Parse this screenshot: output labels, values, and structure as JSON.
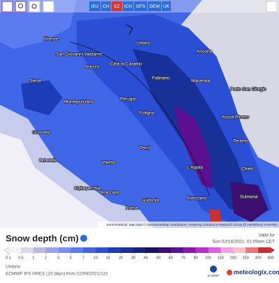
{
  "toolbar": {
    "models": [
      "IEU",
      "CH",
      "EZ",
      "ICN",
      "GFS",
      "GEM",
      "UK"
    ],
    "active": "EZ"
  },
  "map": {
    "labels": [
      "Firenze",
      "Urbino",
      "Ancona",
      "San Giovanni Valdarno",
      "Arezzo",
      "Città di Castello",
      "Siena",
      "Fabriano",
      "Macerata",
      "Porto San Giorgio",
      "Montepulciano",
      "Perugia",
      "Foligno",
      "Grosseto",
      "Ascoli Piceno",
      "Teramo",
      "Terni",
      "Orbetello",
      "Viterbo",
      "L'Aquila",
      "Chieti",
      "Civitavecchia",
      "Bracciano",
      "Avezzano",
      "Sulmona",
      "Roma",
      "Guidonia"
    ],
    "attribution": "Kartenmaterial: Map data © OpenStreetMap contributors, rendering GIScience Research Group @ Heidelberg University"
  },
  "legend": {
    "title": "Snow depth (cm)",
    "valid_label": "Valid for",
    "valid_time": "Sun 02/14/2021, 01:00am CET",
    "ticks": [
      0.1,
      0.5,
      1,
      2,
      3,
      5,
      7,
      10,
      15,
      20,
      30,
      40,
      50,
      60,
      70,
      80,
      100,
      150,
      200,
      250,
      300,
      400
    ],
    "colors": [
      "#f4f4f8",
      "#d8d8ec",
      "#b8b8e0",
      "#9aa4e8",
      "#7890f0",
      "#5a7cf0",
      "#3f66e6",
      "#2a4fd4",
      "#1d3cb8",
      "#17309a",
      "#14247c",
      "#1a1460",
      "#3a0f70",
      "#5a1090",
      "#8a18b0",
      "#b430c8",
      "#d860d8",
      "#f0a0e8",
      "#f4c0c8",
      "#e87878",
      "#c83030"
    ]
  },
  "footer": {
    "region": "Umbria",
    "model": "ECMWF IFS HRES (10 days) from 02/09/2021/12z",
    "logo_left": "ECMWF",
    "logo_right": "meteologix.com"
  }
}
